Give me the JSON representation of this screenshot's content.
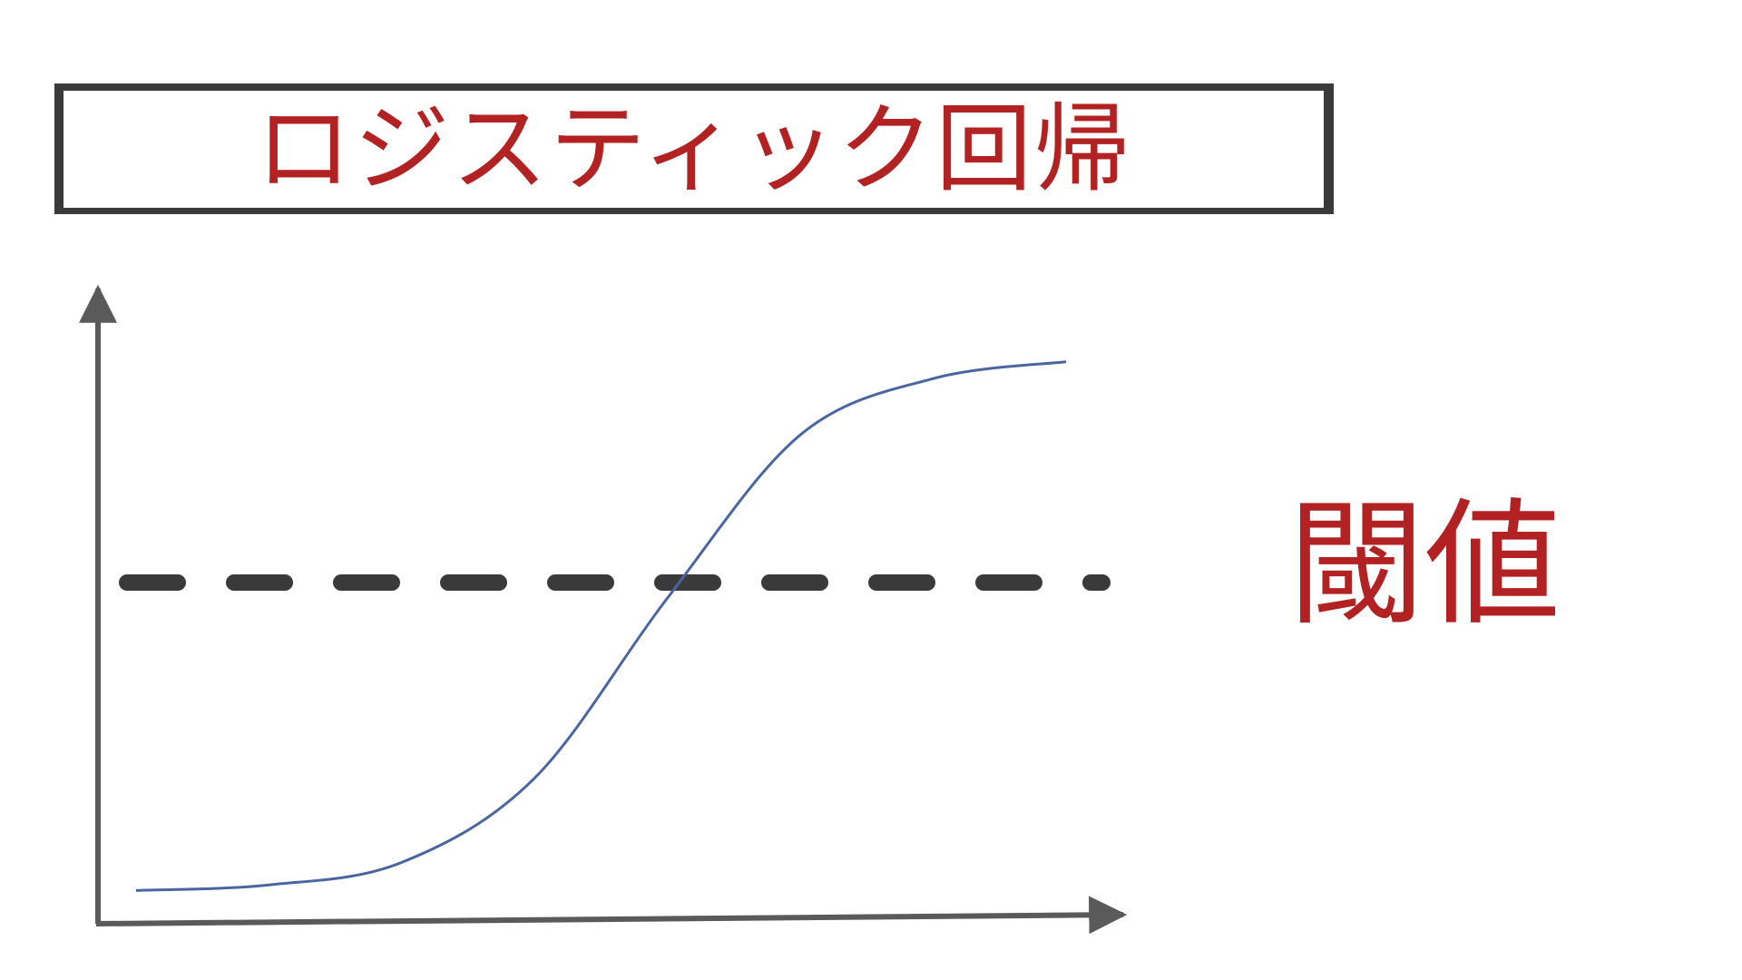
{
  "title": "ロジスティック回帰",
  "threshold_label": "閾値",
  "colors": {
    "accent": "#b22222",
    "axis": "#5a5a5a",
    "curve": "#4a66a0",
    "dash": "#3a3a3a",
    "frame": "#3a3a3a"
  },
  "chart_data": {
    "type": "line",
    "curve_shape": "sigmoid",
    "threshold_line": "dashed",
    "series": [
      {
        "values": [
          0.03,
          0.04,
          0.08,
          0.23,
          0.55,
          0.84,
          0.94,
          0.97
        ]
      }
    ]
  }
}
